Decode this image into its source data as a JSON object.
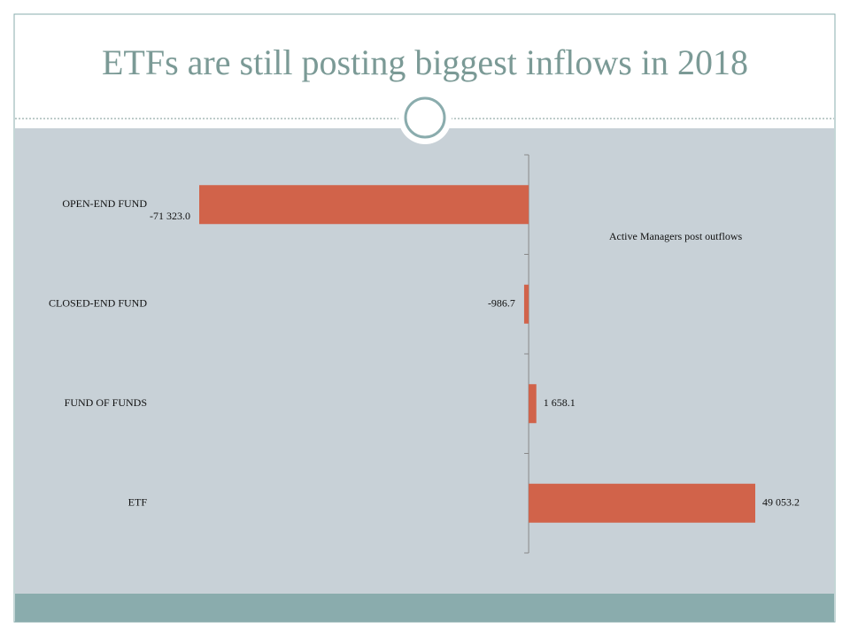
{
  "chart_data": {
    "type": "bar",
    "orientation": "horizontal",
    "title": "ETFs are still posting biggest inflows in 2018",
    "annotation": "Active Managers post outflows",
    "categories": [
      "OPEN-END FUND",
      "CLOSED-END FUND",
      "FUND OF FUNDS",
      "ETF"
    ],
    "values": [
      -71323.0,
      -986.7,
      1658.1,
      49053.2
    ],
    "value_labels": [
      "-71 323.0",
      "-986.7",
      "1 658.1",
      "49 053.2"
    ],
    "color": "#d1634a"
  }
}
